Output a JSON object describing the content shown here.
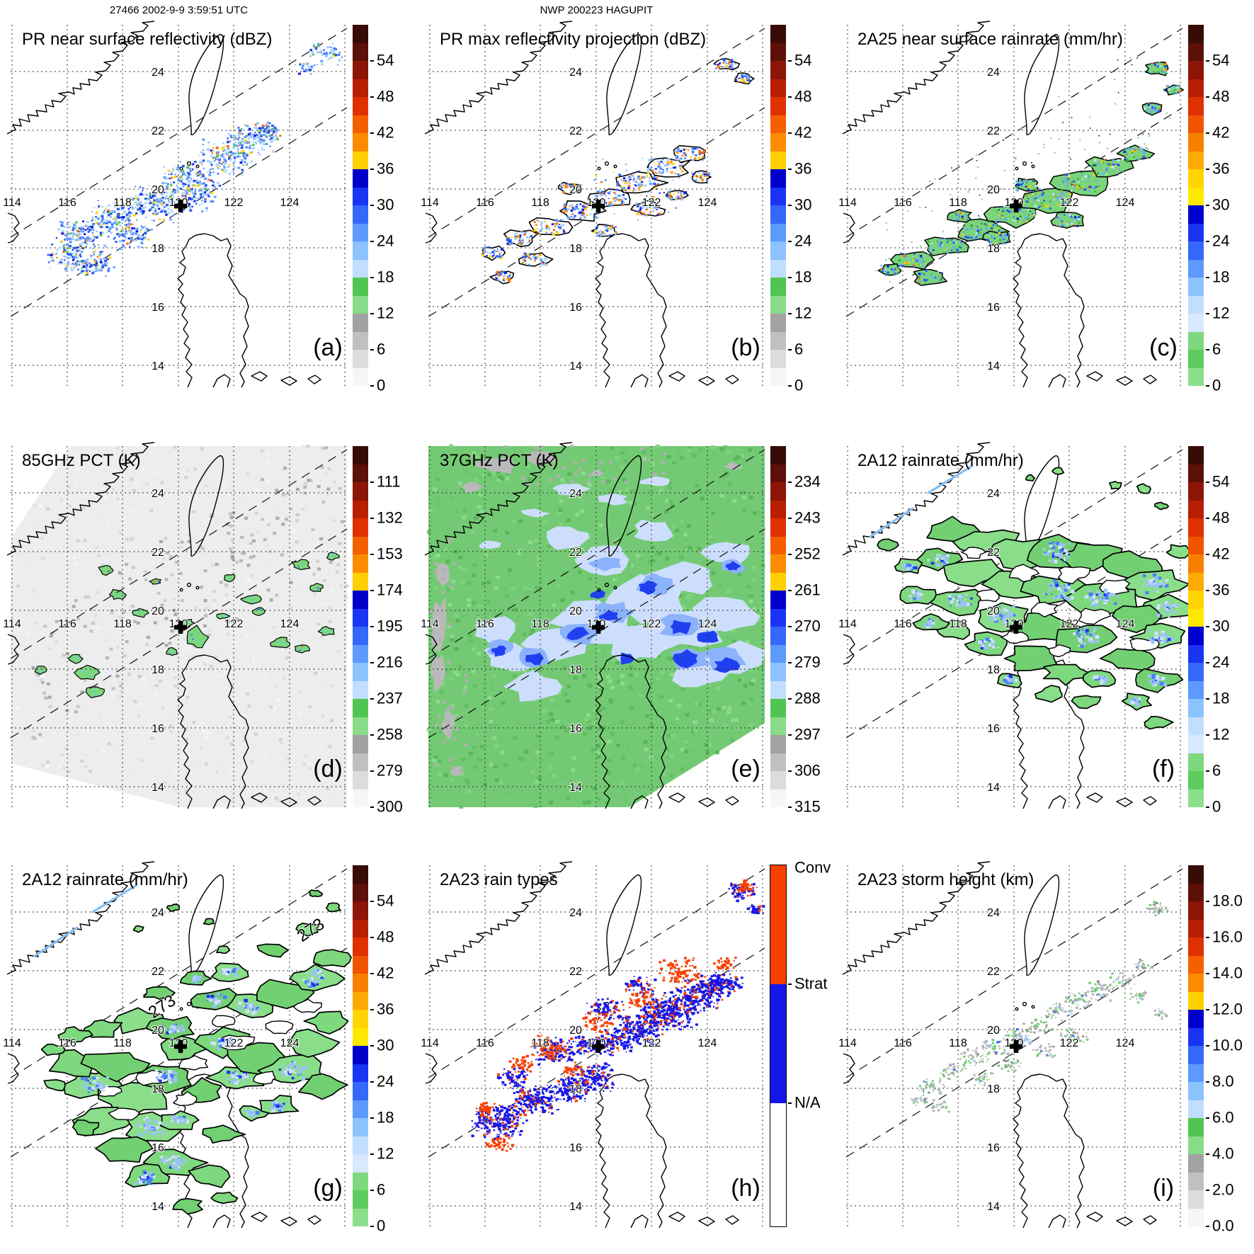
{
  "header": {
    "left": "27466 2002-9-9 3:59:51 UTC",
    "center": "NWP 200223 HAGUPIT"
  },
  "axes": {
    "lon": [
      "114",
      "116",
      "118",
      "120",
      "122",
      "124"
    ],
    "lat": [
      "24",
      "22",
      "20",
      "18",
      "16",
      "14"
    ]
  },
  "colors": {
    "warmcool_palette": [
      "#380b06",
      "#5c1008",
      "#8c1505",
      "#b81e02",
      "#e03000",
      "#f46000",
      "#fb8c00",
      "#ffd000",
      "#0000cc",
      "#1a34f4",
      "#3468fa",
      "#5c9afc",
      "#8cc2fd",
      "#c2defe",
      "#52c452",
      "#88dc88",
      "#a2a2a2",
      "#c0c0c0",
      "#dcdcdc",
      "#f6f6f6"
    ],
    "rain_palette": [
      "#380b06",
      "#5c1008",
      "#8c1505",
      "#b81e02",
      "#e03000",
      "#f05400",
      "#f88000",
      "#fcaa00",
      "#ffd400",
      "#ffe800",
      "#0000cc",
      "#1a34f4",
      "#3468fa",
      "#5c9afc",
      "#8cc2fd",
      "#c2defe",
      "#d8e8fe",
      "#7ed87e",
      "#5ecc5e",
      "#8ce08c"
    ],
    "raintype": {
      "conv": "#f54000",
      "strat": "#1616e8",
      "na": "#ffffff"
    }
  },
  "panels": [
    {
      "id": "a",
      "letter": "(a)",
      "title": "PR near surface reflectivity (dBZ)",
      "kind": "pr_z",
      "colorbar": {
        "palette": "warmcool_palette",
        "labels": [
          "54",
          "48",
          "42",
          "36",
          "30",
          "24",
          "18",
          "12",
          "6",
          "0"
        ]
      }
    },
    {
      "id": "b",
      "letter": "(b)",
      "title": "PR max reflectivity projection (dBZ)",
      "kind": "pr_max",
      "colorbar": {
        "palette": "warmcool_palette",
        "labels": [
          "54",
          "48",
          "42",
          "36",
          "30",
          "24",
          "18",
          "12",
          "6",
          "0"
        ]
      }
    },
    {
      "id": "c",
      "letter": "(c)",
      "title": "2A25 near surface rainrate (mm/hr)",
      "kind": "rain_band",
      "colorbar": {
        "palette": "rain_palette",
        "labels": [
          "54",
          "48",
          "42",
          "36",
          "30",
          "24",
          "18",
          "12",
          "6",
          "0"
        ]
      }
    },
    {
      "id": "d",
      "letter": "(d)",
      "title": "85GHz PCT (K)",
      "kind": "pct85",
      "colorbar": {
        "palette": "warmcool_palette",
        "labels": [
          "111",
          "132",
          "153",
          "174",
          "195",
          "216",
          "237",
          "258",
          "279",
          "300"
        ]
      }
    },
    {
      "id": "e",
      "letter": "(e)",
      "title": "37GHz PCT (K)",
      "kind": "pct37",
      "colorbar": {
        "palette": "warmcool_palette",
        "labels": [
          "234",
          "243",
          "252",
          "261",
          "270",
          "279",
          "288",
          "297",
          "306",
          "315"
        ]
      }
    },
    {
      "id": "f",
      "letter": "(f)",
      "title": "2A12 rainrate (mm/hr)",
      "kind": "tmi_rain_f",
      "colorbar": {
        "palette": "rain_palette",
        "labels": [
          "54",
          "48",
          "42",
          "36",
          "30",
          "24",
          "18",
          "12",
          "6",
          "0"
        ]
      }
    },
    {
      "id": "g",
      "letter": "(g)",
      "title": "2A12 rainrate (mm/hr)",
      "kind": "tmi_rain_g",
      "annotations": [
        {
          "text": "273"
        },
        {
          "text": "273"
        }
      ],
      "colorbar": {
        "palette": "rain_palette",
        "labels": [
          "54",
          "48",
          "42",
          "36",
          "30",
          "24",
          "18",
          "12",
          "6",
          "0"
        ]
      }
    },
    {
      "id": "h",
      "letter": "(h)",
      "title": "2A23 rain types",
      "kind": "rain_types",
      "colorbar": {
        "type": "raintype",
        "labels": [
          "Conv",
          "Strat",
          "N/A"
        ]
      }
    },
    {
      "id": "i",
      "letter": "(i)",
      "title": "2A23 storm height (km)",
      "kind": "storm_height",
      "colorbar": {
        "palette": "warmcool_palette",
        "labels": [
          "18.0",
          "16.0",
          "14.0",
          "12.0",
          "10.0",
          "8.0",
          "6.0",
          "4.0",
          "2.0",
          "0.0"
        ]
      }
    }
  ],
  "chart_data": [
    {
      "panel": "a",
      "type": "heatmap",
      "title": "PR near surface reflectivity (dBZ)",
      "units": "dBZ",
      "colorbar_ticks": [
        54,
        48,
        42,
        36,
        30,
        24,
        18,
        12,
        6,
        0
      ],
      "lon_ticks": [
        114,
        116,
        118,
        120,
        122,
        124
      ],
      "lat_ticks": [
        24,
        22,
        20,
        18,
        16,
        14
      ],
      "storm_center": [
        120,
        19.8
      ]
    },
    {
      "panel": "b",
      "type": "heatmap",
      "title": "PR max reflectivity projection (dBZ)",
      "units": "dBZ",
      "colorbar_ticks": [
        54,
        48,
        42,
        36,
        30,
        24,
        18,
        12,
        6,
        0
      ],
      "lon_ticks": [
        114,
        116,
        118,
        120,
        122,
        124
      ],
      "lat_ticks": [
        24,
        22,
        20,
        18,
        16,
        14
      ]
    },
    {
      "panel": "c",
      "type": "heatmap",
      "title": "2A25 near surface rainrate (mm/hr)",
      "units": "mm/hr",
      "colorbar_ticks": [
        54,
        48,
        42,
        36,
        30,
        24,
        18,
        12,
        6,
        0
      ],
      "lon_ticks": [
        114,
        116,
        118,
        120,
        122,
        124
      ],
      "lat_ticks": [
        24,
        22,
        20,
        18,
        16,
        14
      ]
    },
    {
      "panel": "d",
      "type": "heatmap",
      "title": "85GHz PCT (K)",
      "units": "K",
      "colorbar_ticks": [
        111,
        132,
        153,
        174,
        195,
        216,
        237,
        258,
        279,
        300
      ],
      "lon_ticks": [
        114,
        116,
        118,
        120,
        122,
        124
      ],
      "lat_ticks": [
        24,
        22,
        20,
        18,
        16,
        14
      ]
    },
    {
      "panel": "e",
      "type": "heatmap",
      "title": "37GHz PCT (K)",
      "units": "K",
      "colorbar_ticks": [
        234,
        243,
        252,
        261,
        270,
        279,
        288,
        297,
        306,
        315
      ],
      "lon_ticks": [
        114,
        116,
        118,
        120,
        122,
        124
      ],
      "lat_ticks": [
        24,
        22,
        20,
        18,
        16,
        14
      ]
    },
    {
      "panel": "f",
      "type": "heatmap",
      "title": "2A12 rainrate (mm/hr)",
      "units": "mm/hr",
      "colorbar_ticks": [
        54,
        48,
        42,
        36,
        30,
        24,
        18,
        12,
        6,
        0
      ],
      "lon_ticks": [
        114,
        116,
        118,
        120,
        122,
        124
      ],
      "lat_ticks": [
        24,
        22,
        20,
        18,
        16,
        14
      ]
    },
    {
      "panel": "g",
      "type": "heatmap",
      "title": "2A12 rainrate (mm/hr)",
      "units": "mm/hr",
      "colorbar_ticks": [
        54,
        48,
        42,
        36,
        30,
        24,
        18,
        12,
        6,
        0
      ],
      "contour_labels": [
        273,
        273
      ],
      "lon_ticks": [
        114,
        116,
        118,
        120,
        122,
        124
      ],
      "lat_ticks": [
        24,
        22,
        20,
        18,
        16,
        14
      ]
    },
    {
      "panel": "h",
      "type": "heatmap",
      "title": "2A23 rain types",
      "categories": [
        "Conv",
        "Strat",
        "N/A"
      ],
      "lon_ticks": [
        114,
        116,
        118,
        120,
        122,
        124
      ],
      "lat_ticks": [
        24,
        22,
        20,
        18,
        16,
        14
      ]
    },
    {
      "panel": "i",
      "type": "heatmap",
      "title": "2A23 storm height (km)",
      "units": "km",
      "colorbar_ticks": [
        18.0,
        16.0,
        14.0,
        12.0,
        10.0,
        8.0,
        6.0,
        4.0,
        2.0,
        0.0
      ],
      "lon_ticks": [
        114,
        116,
        118,
        120,
        122,
        124
      ],
      "lat_ticks": [
        24,
        22,
        20,
        18,
        16,
        14
      ]
    }
  ]
}
